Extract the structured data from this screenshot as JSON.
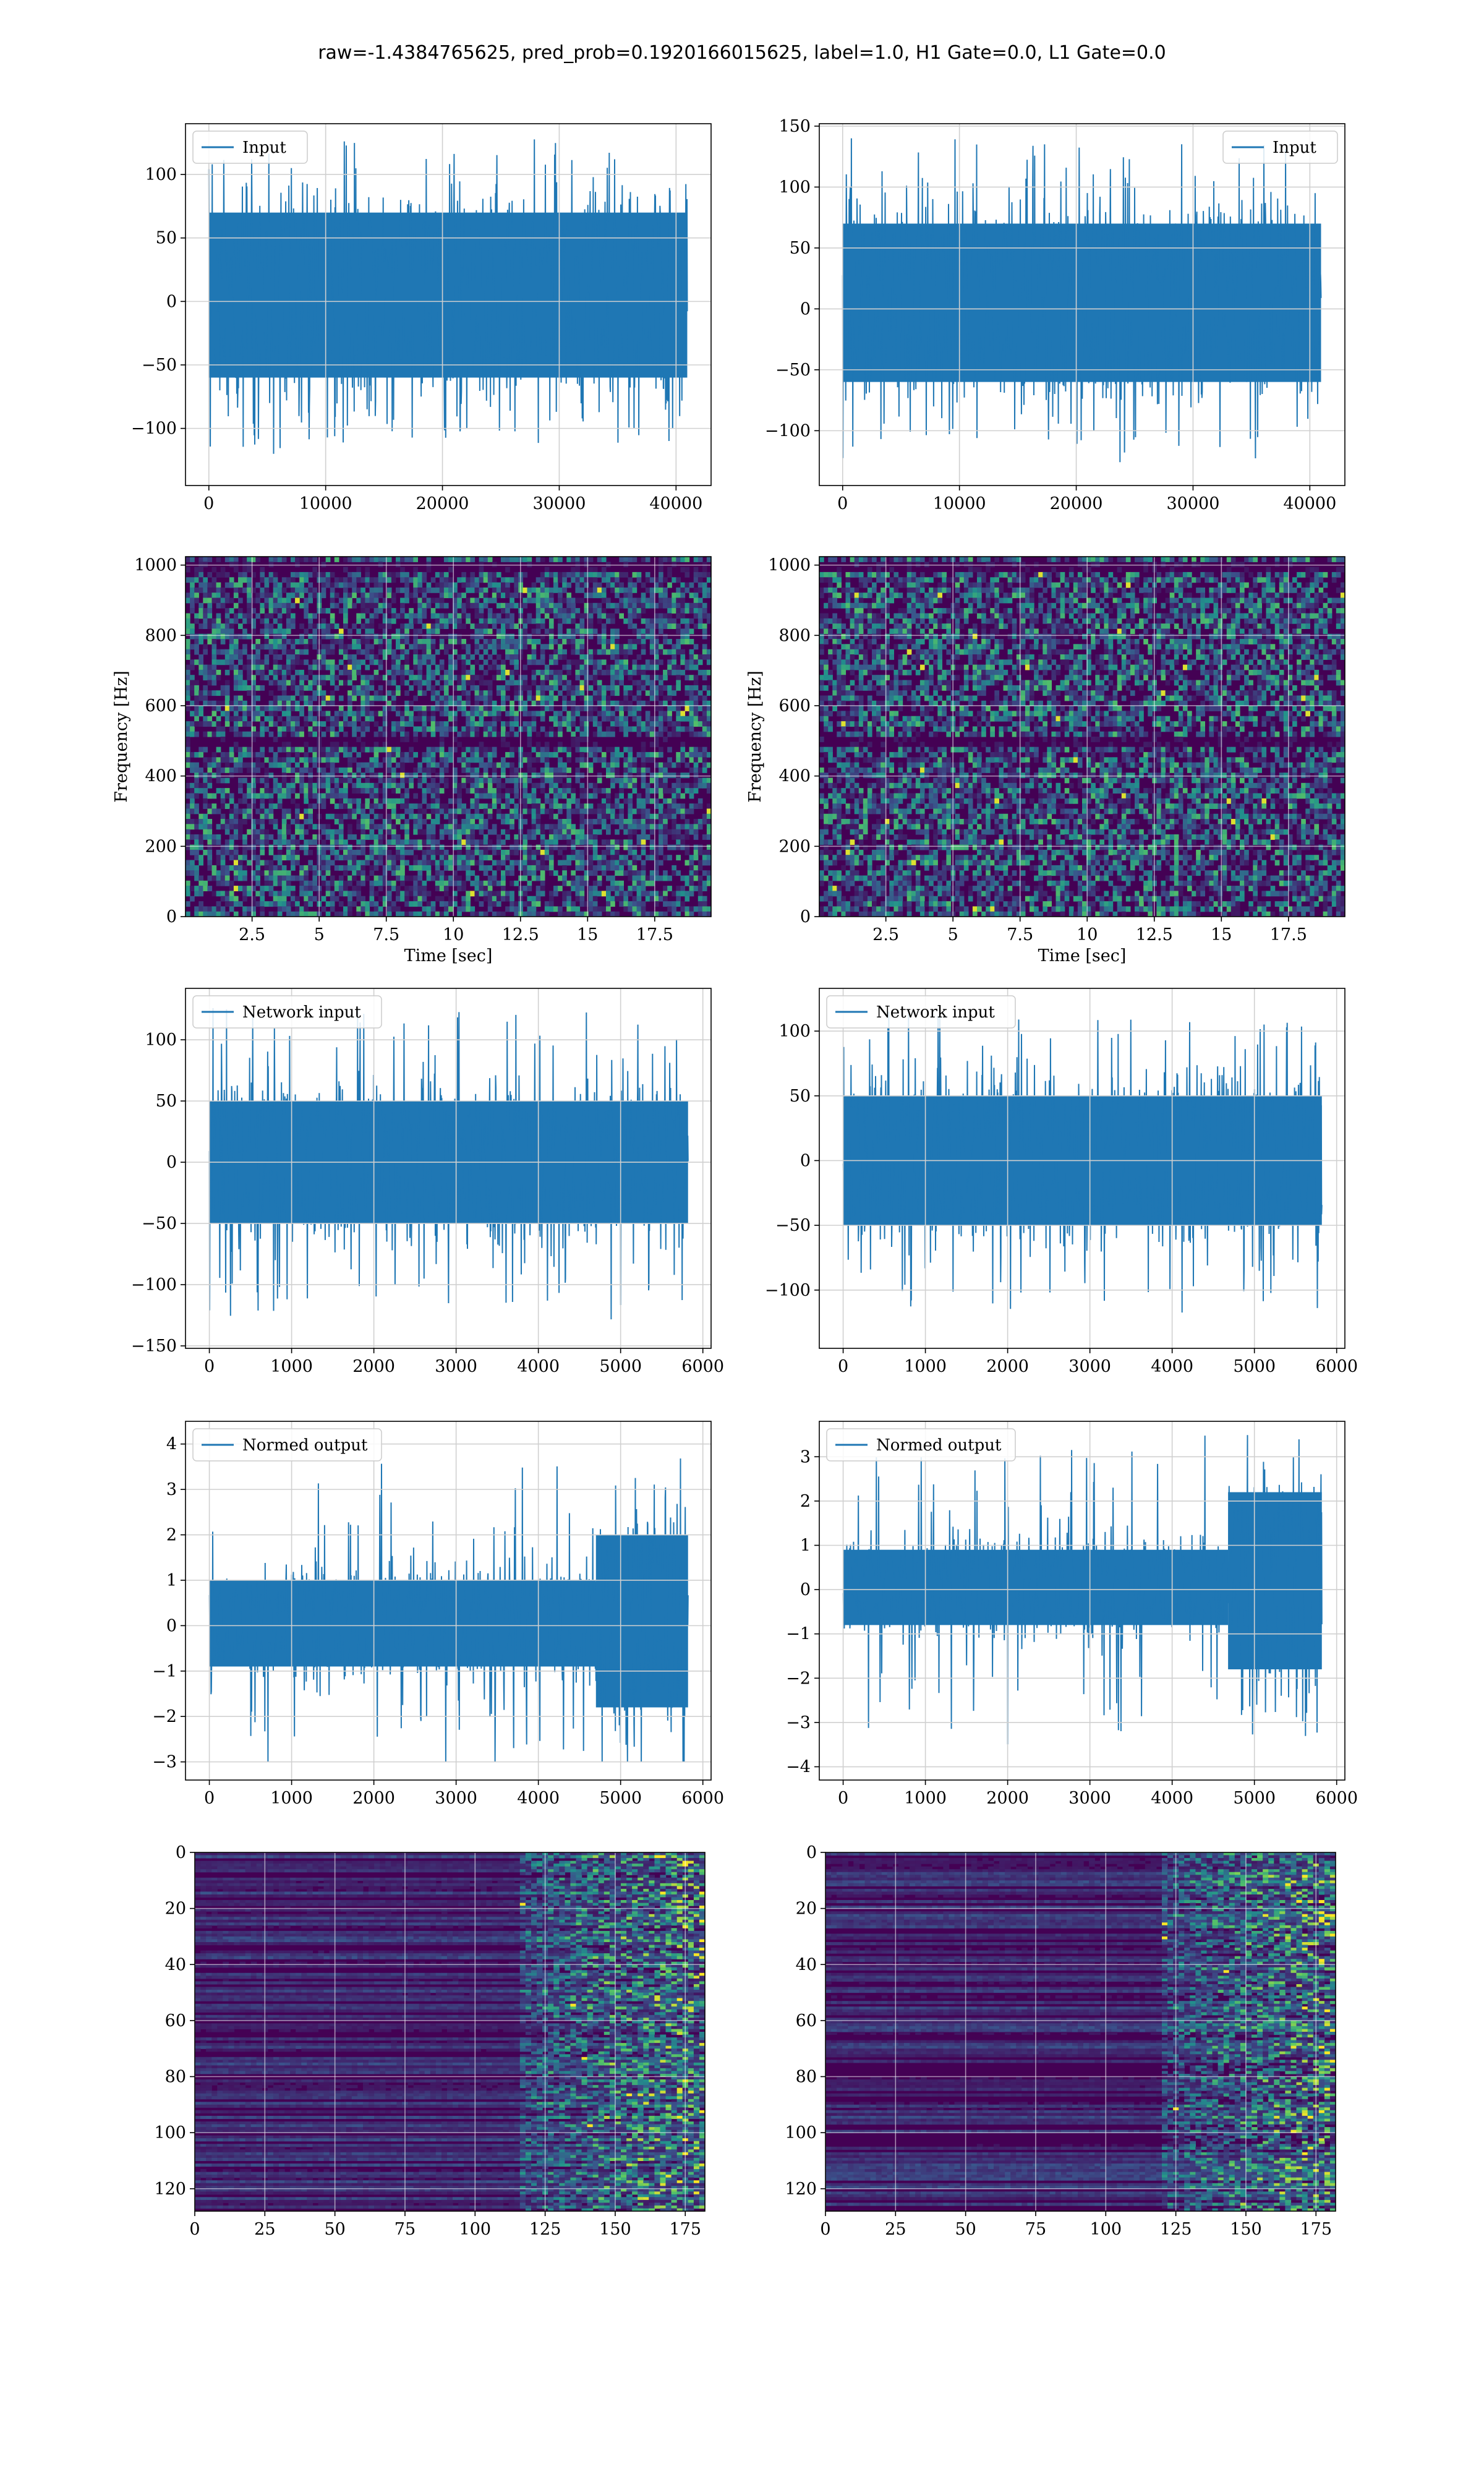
{
  "title": "raw=-1.4384765625, pred_prob=0.1920166015625, label=1.0, H1 Gate=0.0, L1 Gate=0.0",
  "colors": {
    "line": "#1f77b4",
    "grid": "#d0d0d0",
    "spectrogram_bg": "#440154",
    "spectrogram_mid": "#3b528b",
    "spectrogram_hi": "#21918c",
    "spectrogram_peak": "#fde725"
  },
  "chart_data": [
    {
      "id": "h1-input",
      "type": "line",
      "legend": "Input",
      "legend_position": "top-left",
      "grid": true,
      "xlim": [
        -2000,
        43000
      ],
      "ylim": [
        -145,
        140
      ],
      "xticks": [
        0,
        10000,
        20000,
        30000,
        40000
      ],
      "yticks": [
        -100,
        -50,
        0,
        50,
        100
      ],
      "n_samples": 40960,
      "envelope": [
        -120,
        130
      ],
      "body": [
        -60,
        70
      ]
    },
    {
      "id": "l1-input",
      "type": "line",
      "legend": "Input",
      "legend_position": "top-right",
      "grid": true,
      "xlim": [
        -2000,
        43000
      ],
      "ylim": [
        -145,
        152
      ],
      "xticks": [
        0,
        10000,
        20000,
        30000,
        40000
      ],
      "yticks": [
        -100,
        -50,
        0,
        50,
        100,
        150
      ],
      "n_samples": 40960,
      "envelope": [
        -130,
        140
      ],
      "body": [
        -60,
        70
      ]
    },
    {
      "id": "h1-spectrogram",
      "type": "heatmap",
      "xlabel": "Time [sec]",
      "ylabel": "Frequency [Hz]",
      "grid": true,
      "xlim": [
        0.02,
        19.6
      ],
      "ylim": [
        0,
        1024
      ],
      "xticks": [
        2.5,
        5.0,
        7.5,
        10.0,
        12.5,
        15.0,
        17.5
      ],
      "yticks": [
        0,
        200,
        400,
        600,
        800,
        1000
      ],
      "dark_bands_hz": [
        500,
        1000
      ]
    },
    {
      "id": "l1-spectrogram",
      "type": "heatmap",
      "xlabel": "Time [sec]",
      "ylabel": "Frequency [Hz]",
      "grid": true,
      "xlim": [
        0.02,
        19.6
      ],
      "ylim": [
        0,
        1024
      ],
      "xticks": [
        2.5,
        5.0,
        7.5,
        10.0,
        12.5,
        15.0,
        17.5
      ],
      "yticks": [
        0,
        200,
        400,
        600,
        800,
        1000
      ],
      "dark_bands_hz": [
        500,
        1000
      ]
    },
    {
      "id": "h1-network-input",
      "type": "line",
      "legend": "Network input",
      "legend_position": "top-left",
      "grid": true,
      "xlim": [
        -290,
        6100
      ],
      "ylim": [
        -152,
        142
      ],
      "xticks": [
        0,
        1000,
        2000,
        3000,
        4000,
        5000,
        6000
      ],
      "yticks": [
        -150,
        -100,
        -50,
        0,
        50,
        100
      ],
      "n_samples": 5820,
      "envelope": [
        -140,
        130
      ],
      "body": [
        -50,
        50
      ]
    },
    {
      "id": "l1-network-input",
      "type": "line",
      "legend": "Network input",
      "legend_position": "top-left",
      "grid": true,
      "xlim": [
        -290,
        6100
      ],
      "ylim": [
        -145,
        133
      ],
      "xticks": [
        0,
        1000,
        2000,
        3000,
        4000,
        5000,
        6000
      ],
      "yticks": [
        -100,
        -50,
        0,
        50,
        100
      ],
      "n_samples": 5820,
      "envelope": [
        -125,
        118
      ],
      "body": [
        -50,
        50
      ]
    },
    {
      "id": "h1-normed-output",
      "type": "line",
      "legend": "Normed output",
      "legend_position": "top-left",
      "grid": true,
      "xlim": [
        -290,
        6100
      ],
      "ylim": [
        -3.4,
        4.5
      ],
      "xticks": [
        0,
        1000,
        2000,
        3000,
        4000,
        5000,
        6000
      ],
      "yticks": [
        -3,
        -2,
        -1,
        0,
        1,
        2,
        3,
        4
      ],
      "n_samples": 5820,
      "envelope": [
        -3.0,
        4.4
      ],
      "body": [
        -0.9,
        1.0
      ],
      "burst": {
        "start": 4700,
        "envelope": [
          -3.0,
          4.4
        ],
        "body": [
          -1.8,
          2.0
        ]
      }
    },
    {
      "id": "l1-normed-output",
      "type": "line",
      "legend": "Normed output",
      "legend_position": "top-left",
      "grid": true,
      "xlim": [
        -290,
        6100
      ],
      "ylim": [
        -4.3,
        3.8
      ],
      "xticks": [
        0,
        1000,
        2000,
        3000,
        4000,
        5000,
        6000
      ],
      "yticks": [
        -4,
        -3,
        -2,
        -1,
        0,
        1,
        2,
        3
      ],
      "n_samples": 5820,
      "envelope": [
        -3.8,
        3.6
      ],
      "body": [
        -0.8,
        0.9
      ],
      "burst": {
        "start": 4680,
        "envelope": [
          -3.8,
          3.6
        ],
        "body": [
          -1.8,
          2.2
        ]
      }
    },
    {
      "id": "h1-feature-map",
      "type": "heatmap",
      "grid": true,
      "y_inverted": true,
      "xlim": [
        0,
        182
      ],
      "ylim": [
        128,
        0
      ],
      "xticks": [
        0,
        25,
        50,
        75,
        100,
        125,
        150,
        175
      ],
      "yticks": [
        0,
        20,
        40,
        60,
        80,
        100,
        120
      ],
      "activity_onset": 115
    },
    {
      "id": "l1-feature-map",
      "type": "heatmap",
      "grid": true,
      "y_inverted": true,
      "xlim": [
        0,
        182
      ],
      "ylim": [
        128,
        0
      ],
      "xticks": [
        0,
        25,
        50,
        75,
        100,
        125,
        150,
        175
      ],
      "yticks": [
        0,
        20,
        40,
        60,
        80,
        100,
        120
      ],
      "activity_onset": 120
    }
  ]
}
